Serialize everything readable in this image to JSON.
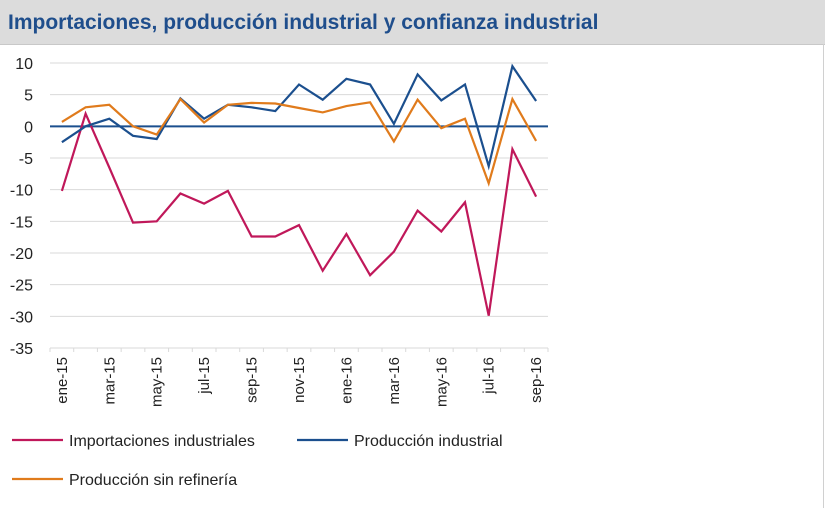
{
  "header": {
    "title": "Importaciones, producción industrial y confianza industrial"
  },
  "chart_data": {
    "type": "line",
    "title": "Importaciones, producción industrial y confianza industrial",
    "xlabel": "",
    "ylabel": "",
    "ylim": [
      -35,
      10
    ],
    "yticks": [
      10,
      5,
      0,
      -5,
      -10,
      -15,
      -20,
      -25,
      -30,
      -35
    ],
    "categories": [
      "ene-15",
      "feb-15",
      "mar-15",
      "abr-15",
      "may-15",
      "jun-15",
      "jul-15",
      "ago-15",
      "sep-15",
      "oct-15",
      "nov-15",
      "dic-15",
      "ene-16",
      "feb-16",
      "mar-16",
      "abr-16",
      "may-16",
      "jun-16",
      "jul-16",
      "ago-16",
      "sep-16"
    ],
    "tick_labels": [
      "ene-15",
      "mar-15",
      "may-15",
      "jul-15",
      "sep-15",
      "nov-15",
      "ene-16",
      "mar-16",
      "may-16",
      "jul-16",
      "sep-16"
    ],
    "grid": true,
    "legend_position": "bottom",
    "series": [
      {
        "name": "Importaciones industriales",
        "color": "#c0185a",
        "values": [
          -10.2,
          2.0,
          -6.5,
          -15.2,
          -15.0,
          -10.6,
          -12.2,
          -10.2,
          -17.4,
          -17.4,
          -15.6,
          -22.8,
          -17.0,
          -23.5,
          -19.8,
          -13.3,
          -16.6,
          -12.0,
          -29.9,
          -3.6,
          -11.1
        ]
      },
      {
        "name": "Producción industrial",
        "color": "#1b4f8e",
        "values": [
          -2.5,
          0.0,
          1.2,
          -1.5,
          -2.0,
          4.4,
          1.2,
          3.4,
          3.0,
          2.4,
          6.6,
          4.2,
          7.5,
          6.6,
          0.4,
          8.2,
          4.1,
          6.6,
          -6.3,
          9.5,
          4.0
        ]
      },
      {
        "name": "Producción sin refinería",
        "color": "#e07b1c",
        "values": [
          0.7,
          3.0,
          3.4,
          0.0,
          -1.3,
          4.3,
          0.6,
          3.4,
          3.7,
          3.6,
          2.9,
          2.2,
          3.2,
          3.8,
          -2.4,
          4.2,
          -0.3,
          1.2,
          -9.0,
          4.3,
          -2.3
        ]
      }
    ]
  }
}
